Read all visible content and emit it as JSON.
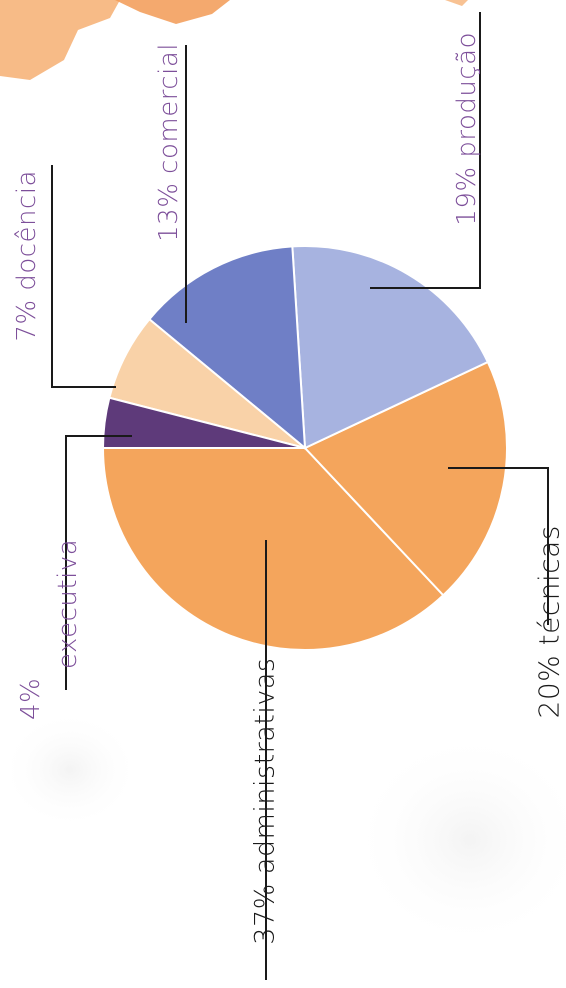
{
  "chart_data": {
    "type": "pie",
    "title": "",
    "slices": [
      {
        "label": "administrativas",
        "value": 37,
        "text": "37% administrativas",
        "color": "#f4a55c"
      },
      {
        "label": "técnicas",
        "value": 20,
        "text": "20% técnicas",
        "color": "#f4a55c"
      },
      {
        "label": "produção",
        "value": 19,
        "text": "19% produção",
        "color": "#a7b3e0"
      },
      {
        "label": "comercial",
        "value": 13,
        "text": "13% comercial",
        "color": "#6f7fc6"
      },
      {
        "label": "docência",
        "value": 7,
        "text": "7% docência",
        "color": "#f9d2a8"
      },
      {
        "label": "executiva",
        "value": 4,
        "text_pct": "4%",
        "text_name": "executiva",
        "color": "#5e3a7a"
      }
    ],
    "legend": "none"
  },
  "colors": {
    "label_accent": "#7d4f9a",
    "label_dark": "#1a1a1a",
    "leader_line": "#1a1a1a",
    "decor_orange": "#f5a865"
  }
}
